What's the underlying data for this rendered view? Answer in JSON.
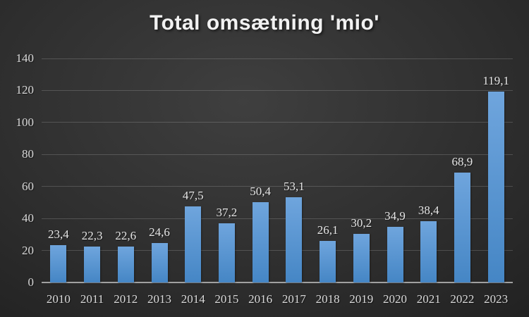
{
  "chart_data": {
    "type": "bar",
    "title": "Total omsætning 'mio'",
    "categories": [
      "2010",
      "2011",
      "2012",
      "2013",
      "2014",
      "2015",
      "2016",
      "2017",
      "2018",
      "2019",
      "2020",
      "2021",
      "2022",
      "2023"
    ],
    "values": [
      23.4,
      22.3,
      22.6,
      24.6,
      47.5,
      37.2,
      50.4,
      53.1,
      26.1,
      30.2,
      34.9,
      38.4,
      68.9,
      119.1
    ],
    "value_labels": [
      "23,4",
      "22,3",
      "22,6",
      "24,6",
      "47,5",
      "37,2",
      "50,4",
      "53,1",
      "26,1",
      "30,2",
      "34,9",
      "38,4",
      "68,9",
      "119,1"
    ],
    "xlabel": "",
    "ylabel": "",
    "ylim": [
      0,
      140
    ],
    "y_ticks": [
      0,
      20,
      40,
      60,
      80,
      100,
      120,
      140
    ],
    "grid": true,
    "legend_position": "none",
    "colors": {
      "bar_top": "#6fa5dd",
      "bar_bottom": "#4586c5",
      "background_center": "#3f3f3f",
      "background_mid": "#2e2e2e",
      "background_edge": "#212121",
      "gridline": "rgba(255,255,255,0.17)",
      "axis_line": "#a0a0a0",
      "tick_label": "#d9d9d9",
      "data_label": "#e6e6e6",
      "title": "#f2f2f2"
    }
  }
}
